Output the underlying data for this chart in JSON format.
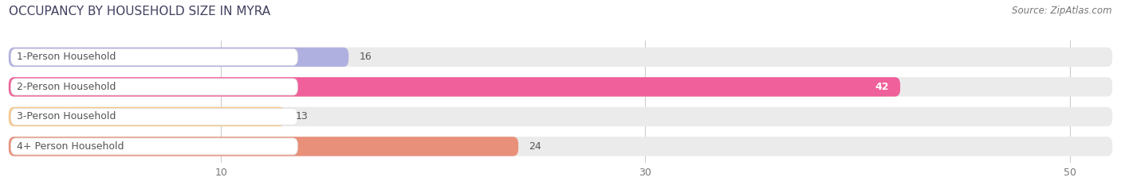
{
  "title": "OCCUPANCY BY HOUSEHOLD SIZE IN MYRA",
  "source": "Source: ZipAtlas.com",
  "categories": [
    "1-Person Household",
    "2-Person Household",
    "3-Person Household",
    "4+ Person Household"
  ],
  "values": [
    16,
    42,
    13,
    24
  ],
  "bar_colors": [
    "#b0b0e0",
    "#f0609a",
    "#f5c98a",
    "#e8907a"
  ],
  "bar_bg_color": "#ebebeb",
  "label_bg_color": "#ffffff",
  "xmin": 0,
  "xmax": 52,
  "xticks": [
    10,
    30,
    50
  ],
  "figsize": [
    14.06,
    2.33
  ],
  "dpi": 100,
  "title_fontsize": 11,
  "source_fontsize": 8.5,
  "label_fontsize": 9,
  "value_fontsize": 9,
  "title_color": "#404060",
  "label_text_color": "#555555",
  "value_text_color_inside": "#ffffff",
  "value_text_color_outside": "#555555",
  "bar_height": 0.62,
  "bar_gap": 0.18
}
